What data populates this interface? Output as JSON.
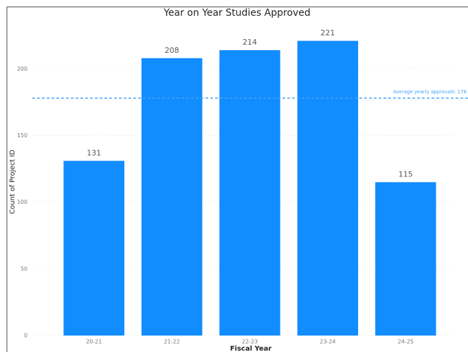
{
  "chart_data": {
    "type": "bar",
    "title": "Year on Year Studies Approved",
    "x_label": "Fiscal Year",
    "y_label": "Count of Project ID",
    "categories": [
      "20-21",
      "21-22",
      "22-23",
      "23-24",
      "24-25"
    ],
    "values": [
      131,
      208,
      214,
      221,
      115
    ],
    "color": "#118dff",
    "ylim": [
      0,
      230
    ],
    "yticks": [
      0,
      50,
      100,
      150,
      200
    ],
    "grid": true,
    "reference_line": {
      "value": 178,
      "label": "Average yearly approvals: 178",
      "color": "#44a4f5"
    }
  }
}
